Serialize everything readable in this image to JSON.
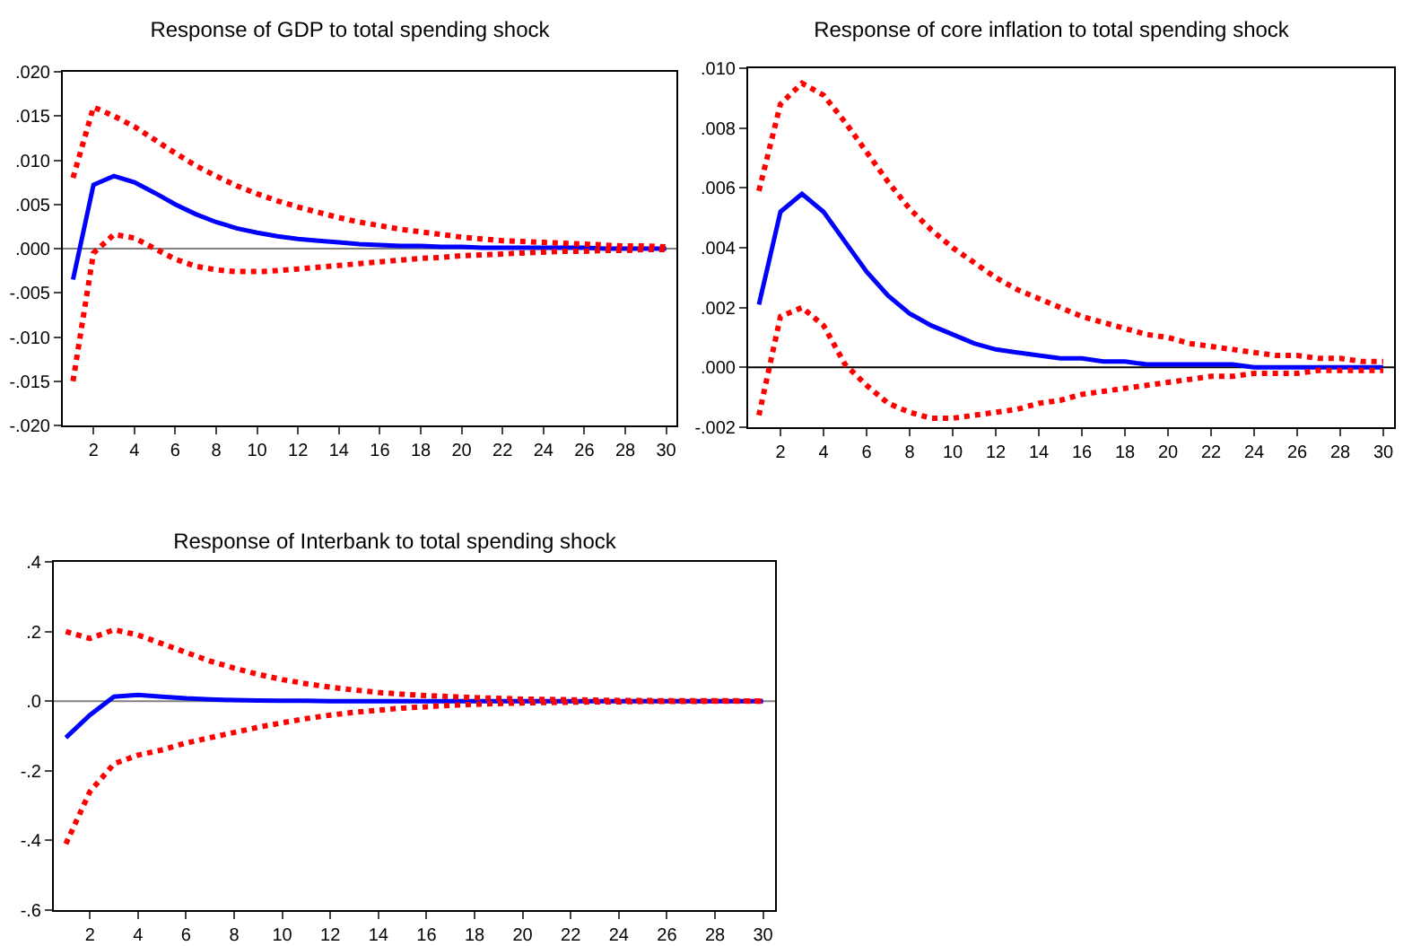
{
  "chart_data": [
    {
      "type": "line",
      "title": "Response of GDP to total spending shock",
      "x": [
        1,
        2,
        3,
        4,
        5,
        6,
        7,
        8,
        9,
        10,
        11,
        12,
        13,
        14,
        15,
        16,
        17,
        18,
        19,
        20,
        21,
        22,
        23,
        24,
        25,
        26,
        27,
        28,
        29,
        30
      ],
      "series": [
        {
          "color": "#0000ff",
          "line_style": "solid",
          "values": [
            -0.0035,
            0.0072,
            0.0082,
            0.0075,
            0.0063,
            0.005,
            0.0039,
            0.003,
            0.0023,
            0.0018,
            0.0014,
            0.0011,
            0.0009,
            0.0007,
            0.0005,
            0.0004,
            0.0003,
            0.0003,
            0.0002,
            0.0002,
            0.0001,
            0.0001,
            0.0001,
            0.0001,
            0.0001,
            0.0001,
            0,
            0,
            0,
            0
          ]
        },
        {
          "color": "#ff0000",
          "line_style": "dotted",
          "values": [
            0.008,
            0.016,
            0.015,
            0.0138,
            0.0123,
            0.0108,
            0.0094,
            0.0082,
            0.0071,
            0.0062,
            0.0054,
            0.0047,
            0.0041,
            0.0035,
            0.003,
            0.0026,
            0.0022,
            0.0019,
            0.0016,
            0.0013,
            0.0011,
            0.0009,
            0.0008,
            0.0007,
            0.0006,
            0.0005,
            0.0004,
            0.0003,
            0.0003,
            0.0002
          ]
        },
        {
          "color": "#ff0000",
          "line_style": "dotted",
          "values": [
            -0.015,
            -0.0005,
            0.0016,
            0.0012,
            0,
            -0.0012,
            -0.002,
            -0.0024,
            -0.0026,
            -0.0026,
            -0.0025,
            -0.0023,
            -0.0021,
            -0.0019,
            -0.0017,
            -0.0015,
            -0.0013,
            -0.0011,
            -0.001,
            -0.0008,
            -0.0007,
            -0.0006,
            -0.0005,
            -0.0004,
            -0.0003,
            -0.0003,
            -0.0002,
            -0.0002,
            -0.0001,
            -0.0001
          ]
        }
      ],
      "xlim": [
        0.5,
        30.5
      ],
      "xticks": [
        2,
        4,
        6,
        8,
        10,
        12,
        14,
        16,
        18,
        20,
        22,
        24,
        26,
        28,
        30
      ],
      "ylim": [
        -0.02,
        0.02
      ],
      "yticks": [
        {
          "value": -0.02,
          "label": "-.020"
        },
        {
          "value": -0.015,
          "label": "-.015"
        },
        {
          "value": -0.01,
          "label": "-.010"
        },
        {
          "value": -0.005,
          "label": "-.005"
        },
        {
          "value": 0,
          "label": ".000"
        },
        {
          "value": 0.005,
          "label": ".005"
        },
        {
          "value": 0.01,
          "label": ".010"
        },
        {
          "value": 0.015,
          "label": ".015"
        },
        {
          "value": 0.02,
          "label": ".020"
        }
      ],
      "ref_lines": [
        {
          "axis": "y",
          "value": 0,
          "color": "#808080"
        }
      ],
      "grid": false,
      "marker": "none"
    },
    {
      "type": "line",
      "title": "Response of core inflation to total spending shock",
      "x": [
        1,
        2,
        3,
        4,
        5,
        6,
        7,
        8,
        9,
        10,
        11,
        12,
        13,
        14,
        15,
        16,
        17,
        18,
        19,
        20,
        21,
        22,
        23,
        24,
        25,
        26,
        27,
        28,
        29,
        30
      ],
      "series": [
        {
          "color": "#0000ff",
          "line_style": "solid",
          "values": [
            0.0021,
            0.0052,
            0.0058,
            0.0052,
            0.0042,
            0.0032,
            0.0024,
            0.0018,
            0.0014,
            0.0011,
            0.0008,
            0.0006,
            0.0005,
            0.0004,
            0.0003,
            0.0003,
            0.0002,
            0.0002,
            0.0001,
            0.0001,
            0.0001,
            0.0001,
            0.0001,
            0,
            0,
            0,
            0,
            0,
            0,
            0
          ]
        },
        {
          "color": "#ff0000",
          "line_style": "dotted",
          "values": [
            0.0059,
            0.0088,
            0.0095,
            0.0091,
            0.0082,
            0.0072,
            0.0062,
            0.0053,
            0.0046,
            0.004,
            0.0035,
            0.003,
            0.0026,
            0.0023,
            0.002,
            0.0017,
            0.0015,
            0.0013,
            0.0011,
            0.001,
            0.0008,
            0.0007,
            0.0006,
            0.0005,
            0.0004,
            0.0004,
            0.0003,
            0.0003,
            0.0002,
            0.0002
          ]
        },
        {
          "color": "#ff0000",
          "line_style": "dotted",
          "values": [
            -0.0016,
            0.0017,
            0.002,
            0.0014,
            0.0001,
            -0.0006,
            -0.0012,
            -0.0015,
            -0.0017,
            -0.0017,
            -0.0016,
            -0.0015,
            -0.0014,
            -0.0012,
            -0.0011,
            -0.0009,
            -0.0008,
            -0.0007,
            -0.0006,
            -0.0005,
            -0.0004,
            -0.0003,
            -0.0003,
            -0.0002,
            -0.0002,
            -0.0002,
            -0.0001,
            -0.0001,
            -0.0001,
            -0.0001
          ]
        }
      ],
      "xlim": [
        0.5,
        30.5
      ],
      "xticks": [
        2,
        4,
        6,
        8,
        10,
        12,
        14,
        16,
        18,
        20,
        22,
        24,
        26,
        28,
        30
      ],
      "ylim": [
        -0.002,
        0.01
      ],
      "yticks": [
        {
          "value": -0.002,
          "label": "-.002"
        },
        {
          "value": 0,
          "label": ".000"
        },
        {
          "value": 0.002,
          "label": ".002"
        },
        {
          "value": 0.004,
          "label": ".004"
        },
        {
          "value": 0.006,
          "label": ".006"
        },
        {
          "value": 0.008,
          "label": ".008"
        },
        {
          "value": 0.01,
          "label": ".010"
        }
      ],
      "ref_lines": [
        {
          "axis": "y",
          "value": 0,
          "color": "#000000"
        }
      ],
      "grid": false,
      "marker": "none"
    },
    {
      "type": "line",
      "title": "Response of Interbank to total spending shock",
      "x": [
        1,
        2,
        3,
        4,
        5,
        6,
        7,
        8,
        9,
        10,
        11,
        12,
        13,
        14,
        15,
        16,
        17,
        18,
        19,
        20,
        21,
        22,
        23,
        24,
        25,
        26,
        27,
        28,
        29,
        30
      ],
      "series": [
        {
          "color": "#0000ff",
          "line_style": "solid",
          "values": [
            -0.105,
            -0.04,
            0.013,
            0.018,
            0.013,
            0.008,
            0.005,
            0.003,
            0.002,
            0.001,
            0.001,
            0,
            0,
            0,
            0,
            0,
            0,
            0,
            0,
            0,
            0,
            0,
            0,
            0,
            0,
            0,
            0,
            0,
            0,
            0
          ]
        },
        {
          "color": "#ff0000",
          "line_style": "dotted",
          "values": [
            0.2,
            0.18,
            0.205,
            0.19,
            0.165,
            0.14,
            0.115,
            0.095,
            0.077,
            0.062,
            0.05,
            0.04,
            0.032,
            0.025,
            0.02,
            0.016,
            0.013,
            0.01,
            0.008,
            0.006,
            0.005,
            0.004,
            0.003,
            0.002,
            0.002,
            0.001,
            0.001,
            0.001,
            0.001,
            0
          ]
        },
        {
          "color": "#ff0000",
          "line_style": "dotted",
          "values": [
            -0.41,
            -0.26,
            -0.18,
            -0.155,
            -0.14,
            -0.12,
            -0.105,
            -0.09,
            -0.075,
            -0.062,
            -0.05,
            -0.04,
            -0.032,
            -0.026,
            -0.02,
            -0.016,
            -0.012,
            -0.009,
            -0.007,
            -0.005,
            -0.004,
            -0.003,
            -0.002,
            -0.002,
            -0.001,
            -0.001,
            -0.001,
            0,
            0,
            0
          ]
        }
      ],
      "xlim": [
        0.5,
        30.5
      ],
      "xticks": [
        2,
        4,
        6,
        8,
        10,
        12,
        14,
        16,
        18,
        20,
        22,
        24,
        26,
        28,
        30
      ],
      "ylim": [
        -0.6,
        0.4
      ],
      "yticks": [
        {
          "value": -0.6,
          "label": "-.6"
        },
        {
          "value": -0.4,
          "label": "-.4"
        },
        {
          "value": -0.2,
          "label": "-.2"
        },
        {
          "value": 0,
          "label": ".0"
        },
        {
          "value": 0.2,
          "label": ".2"
        },
        {
          "value": 0.4,
          "label": ".4"
        }
      ],
      "ref_lines": [
        {
          "axis": "y",
          "value": 0,
          "color": "#808080"
        }
      ],
      "grid": false,
      "marker": "none"
    }
  ]
}
